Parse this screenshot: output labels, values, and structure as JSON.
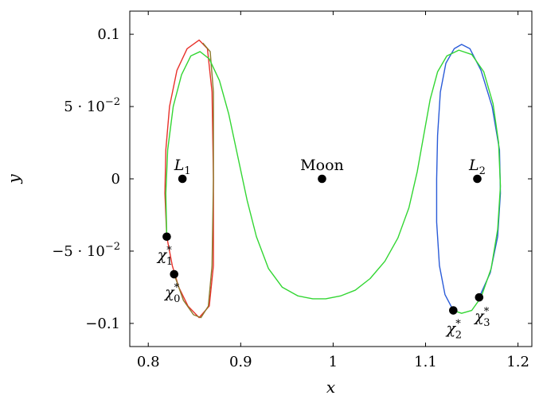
{
  "chart_data": {
    "type": "line",
    "xlabel": "x",
    "ylabel": "y",
    "xlim": [
      0.78,
      1.215
    ],
    "ylim": [
      -0.116,
      0.116
    ],
    "grid": false,
    "x_ticks": [
      {
        "value": 0.8,
        "label": "0.8"
      },
      {
        "value": 0.9,
        "label": "0.9"
      },
      {
        "value": 1.0,
        "label": "1"
      },
      {
        "value": 1.1,
        "label": "1.1"
      },
      {
        "value": 1.2,
        "label": "1.2"
      }
    ],
    "y_ticks": [
      {
        "value": 0.1,
        "label": "0.1",
        "mant": "",
        "exp": ""
      },
      {
        "value": 0.05,
        "label": "",
        "mant": "5 · 10",
        "exp": "−2"
      },
      {
        "value": 0,
        "label": "0",
        "mant": "",
        "exp": ""
      },
      {
        "value": -0.05,
        "label": "",
        "mant": "−5 · 10",
        "exp": "−2"
      },
      {
        "value": -0.1,
        "label": "−0.1",
        "mant": "",
        "exp": ""
      }
    ],
    "series": [
      {
        "color": "#e8312a",
        "points": [
          [
            0.82,
            -0.04
          ],
          [
            0.818,
            -0.01
          ],
          [
            0.819,
            0.02
          ],
          [
            0.823,
            0.05
          ],
          [
            0.831,
            0.075
          ],
          [
            0.842,
            0.09
          ],
          [
            0.855,
            0.096
          ],
          [
            0.864,
            0.09
          ],
          [
            0.869,
            0.06
          ],
          [
            0.8705,
            0.0
          ],
          [
            0.8705,
            -0.06
          ],
          [
            0.866,
            -0.088
          ],
          [
            0.855,
            -0.096
          ],
          [
            0.843,
            -0.088
          ],
          [
            0.833,
            -0.075
          ],
          [
            0.826,
            -0.06
          ],
          [
            0.82,
            -0.04
          ]
        ]
      },
      {
        "color": "#8c7a2b",
        "points": [
          [
            0.828,
            -0.066
          ],
          [
            0.838,
            -0.084
          ],
          [
            0.849,
            -0.094
          ],
          [
            0.857,
            -0.096
          ],
          [
            0.865,
            -0.088
          ],
          [
            0.869,
            -0.06
          ],
          [
            0.8705,
            0.0
          ],
          [
            0.8705,
            0.06
          ],
          [
            0.867,
            0.088
          ],
          [
            0.859,
            0.094
          ]
        ]
      },
      {
        "color": "#2a5bd8",
        "points": [
          [
            1.13,
            -0.091
          ],
          [
            1.121,
            -0.08
          ],
          [
            1.115,
            -0.06
          ],
          [
            1.112,
            -0.03
          ],
          [
            1.112,
            0.0
          ],
          [
            1.113,
            0.03
          ],
          [
            1.116,
            0.06
          ],
          [
            1.122,
            0.08
          ],
          [
            1.131,
            0.09
          ],
          [
            1.139,
            0.093
          ],
          [
            1.148,
            0.09
          ],
          [
            1.16,
            0.075
          ],
          [
            1.172,
            0.05
          ],
          [
            1.18,
            0.02
          ],
          [
            1.181,
            -0.01
          ],
          [
            1.178,
            -0.04
          ],
          [
            1.17,
            -0.065
          ],
          [
            1.158,
            -0.082
          ]
        ]
      },
      {
        "color": "#33d633",
        "points": [
          [
            0.82,
            -0.04
          ],
          [
            0.819,
            -0.01
          ],
          [
            0.821,
            0.02
          ],
          [
            0.827,
            0.05
          ],
          [
            0.836,
            0.072
          ],
          [
            0.846,
            0.085
          ],
          [
            0.856,
            0.088
          ],
          [
            0.866,
            0.083
          ],
          [
            0.877,
            0.068
          ],
          [
            0.887,
            0.045
          ],
          [
            0.897,
            0.015
          ],
          [
            0.907,
            -0.015
          ],
          [
            0.917,
            -0.04
          ],
          [
            0.93,
            -0.062
          ],
          [
            0.945,
            -0.075
          ],
          [
            0.962,
            -0.081
          ],
          [
            0.978,
            -0.083
          ],
          [
            0.992,
            -0.083
          ],
          [
            1.008,
            -0.081
          ],
          [
            1.024,
            -0.077
          ],
          [
            1.04,
            -0.069
          ],
          [
            1.056,
            -0.057
          ],
          [
            1.07,
            -0.041
          ],
          [
            1.082,
            -0.02
          ],
          [
            1.091,
            0.005
          ],
          [
            1.098,
            0.03
          ],
          [
            1.105,
            0.055
          ],
          [
            1.113,
            0.074
          ],
          [
            1.123,
            0.085
          ],
          [
            1.136,
            0.089
          ],
          [
            1.15,
            0.086
          ],
          [
            1.163,
            0.074
          ],
          [
            1.173,
            0.052
          ],
          [
            1.179,
            0.025
          ],
          [
            1.181,
            -0.005
          ],
          [
            1.178,
            -0.035
          ],
          [
            1.171,
            -0.062
          ],
          [
            1.16,
            -0.082
          ],
          [
            1.15,
            -0.091
          ],
          [
            1.139,
            -0.093
          ],
          [
            1.13,
            -0.091
          ]
        ]
      }
    ],
    "points": [
      {
        "name": "L1",
        "x": 0.837,
        "y": 0.0,
        "label": "L",
        "sub": "1",
        "italic": true,
        "pos": "above"
      },
      {
        "name": "moon",
        "x": 0.988,
        "y": 0.0,
        "label": "Moon",
        "sub": "",
        "italic": false,
        "pos": "above"
      },
      {
        "name": "L2",
        "x": 1.156,
        "y": 0.0,
        "label": "L",
        "sub": "2",
        "italic": true,
        "pos": "above"
      },
      {
        "name": "chi1",
        "x": 0.82,
        "y": -0.04,
        "label": "χ",
        "sub": "1",
        "sup": "*",
        "italic": true,
        "pos": "below-left"
      },
      {
        "name": "chi0",
        "x": 0.828,
        "y": -0.066,
        "label": "χ",
        "sub": "0",
        "sup": "*",
        "italic": true,
        "pos": "below-left"
      },
      {
        "name": "chi2",
        "x": 1.13,
        "y": -0.091,
        "label": "χ",
        "sub": "2",
        "sup": "*",
        "italic": true,
        "pos": "below"
      },
      {
        "name": "chi3",
        "x": 1.158,
        "y": -0.082,
        "label": "χ",
        "sub": "3",
        "sup": "*",
        "italic": true,
        "pos": "below-right"
      }
    ]
  }
}
